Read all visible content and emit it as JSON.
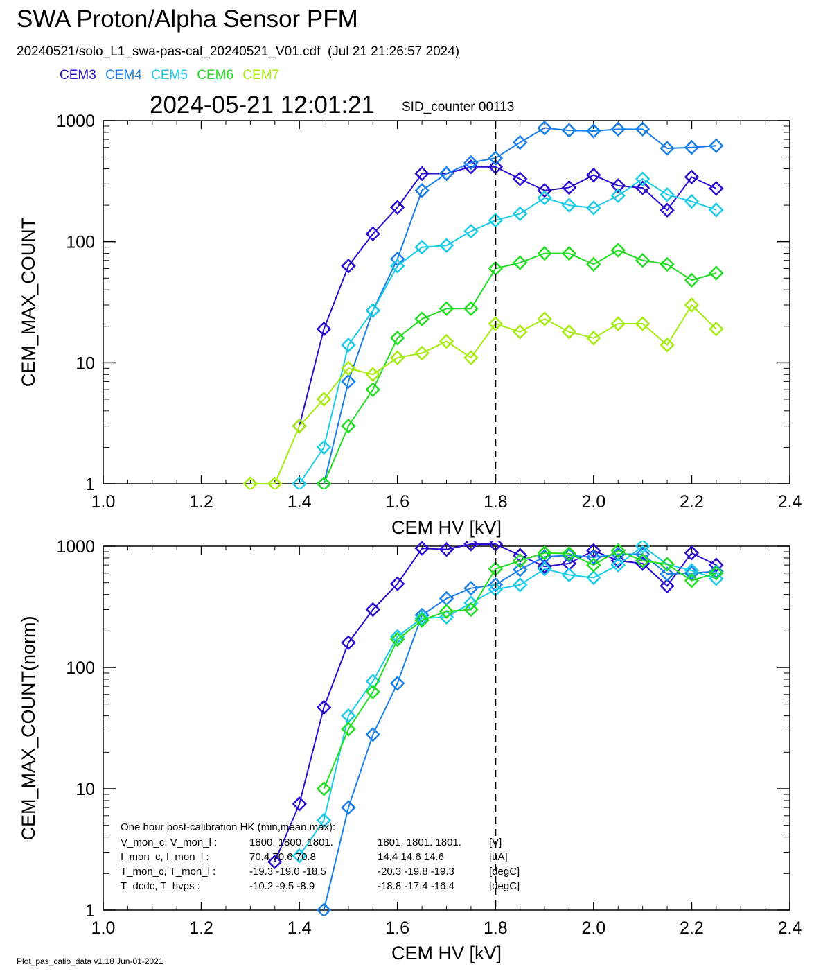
{
  "header": {
    "title": "SWA Proton/Alpha Sensor PFM",
    "subtitle": "20240521/solo_L1_swa-pas-cal_20240521_V01.cdf  (Jul 21 21:26:57 2024)",
    "datetime": "2024-05-21 12:01:21",
    "sid_counter": "SID_counter 00113"
  },
  "legend": [
    {
      "name": "CEM3",
      "color": "#2a0fd0"
    },
    {
      "name": "CEM4",
      "color": "#1a7fe6"
    },
    {
      "name": "CEM5",
      "color": "#1ccbe8"
    },
    {
      "name": "CEM6",
      "color": "#22dd22"
    },
    {
      "name": "CEM7",
      "color": "#a6ec10"
    }
  ],
  "footer": "Plot_pas_calib_data v1.18 Jun-01-2021",
  "chart_data": [
    {
      "type": "line",
      "xlabel": "CEM HV [kV]",
      "ylabel": "CEM_MAX_COUNT",
      "xlim": [
        1.0,
        2.4
      ],
      "ylim": [
        1,
        1000
      ],
      "yscale": "log",
      "xticks": [
        "1.0",
        "1.2",
        "1.4",
        "1.6",
        "1.8",
        "2.0",
        "2.2",
        "2.4"
      ],
      "yticks": [
        "1",
        "10",
        "100",
        "1000"
      ],
      "vline": 1.8,
      "x": [
        1.0,
        1.05,
        1.1,
        1.15,
        1.2,
        1.25,
        1.3,
        1.35,
        1.4,
        1.45,
        1.5,
        1.55,
        1.6,
        1.65,
        1.7,
        1.75,
        1.8,
        1.85,
        1.9,
        1.95,
        2.0,
        2.05,
        2.1,
        2.15,
        2.2,
        2.25
      ],
      "series": [
        {
          "name": "CEM3",
          "color": "#2a0fd0",
          "values": [
            null,
            null,
            null,
            null,
            null,
            null,
            null,
            null,
            3,
            19,
            63,
            116,
            192,
            365,
            365,
            415,
            415,
            330,
            265,
            280,
            355,
            290,
            278,
            182,
            342,
            275
          ]
        },
        {
          "name": "CEM4",
          "color": "#1a7fe6",
          "values": [
            null,
            null,
            null,
            null,
            null,
            null,
            null,
            null,
            null,
            1,
            7,
            27,
            72,
            265,
            365,
            450,
            490,
            660,
            870,
            830,
            820,
            850,
            850,
            590,
            600,
            620
          ]
        },
        {
          "name": "CEM5",
          "color": "#1ccbe8",
          "values": [
            null,
            null,
            null,
            null,
            null,
            null,
            null,
            null,
            1,
            2,
            14,
            27,
            63,
            90,
            93,
            122,
            150,
            170,
            230,
            200,
            190,
            240,
            330,
            245,
            215,
            183
          ]
        },
        {
          "name": "CEM6",
          "color": "#22dd22",
          "values": [
            null,
            null,
            null,
            null,
            null,
            null,
            null,
            null,
            null,
            1,
            3,
            6,
            16,
            23,
            28,
            28,
            60,
            67,
            80,
            80,
            65,
            85,
            70,
            65,
            48,
            55
          ]
        },
        {
          "name": "CEM7",
          "color": "#a6ec10",
          "values": [
            null,
            null,
            null,
            null,
            null,
            null,
            1,
            1,
            3,
            5,
            9,
            8,
            11,
            12,
            15,
            11,
            21,
            18,
            23,
            18,
            16,
            21,
            21,
            14,
            30,
            19
          ]
        }
      ]
    },
    {
      "type": "line",
      "xlabel": "CEM HV [kV]",
      "ylabel": "CEM_MAX_COUNT(norm)",
      "xlim": [
        1.0,
        2.4
      ],
      "ylim": [
        1,
        1000
      ],
      "yscale": "log",
      "xticks": [
        "1.0",
        "1.2",
        "1.4",
        "1.6",
        "1.8",
        "2.0",
        "2.2",
        "2.4"
      ],
      "yticks": [
        "1",
        "10",
        "100",
        "1000"
      ],
      "vline": 1.8,
      "x": [
        1.0,
        1.05,
        1.1,
        1.15,
        1.2,
        1.25,
        1.3,
        1.35,
        1.4,
        1.45,
        1.5,
        1.55,
        1.6,
        1.65,
        1.7,
        1.75,
        1.8,
        1.85,
        1.9,
        1.95,
        2.0,
        2.05,
        2.1,
        2.15,
        2.2,
        2.25
      ],
      "series": [
        {
          "name": "CEM3",
          "color": "#2a0fd0",
          "values": [
            null,
            null,
            null,
            null,
            null,
            null,
            null,
            2.5,
            7.5,
            47,
            160,
            300,
            490,
            960,
            940,
            1040,
            1040,
            840,
            680,
            720,
            920,
            760,
            720,
            470,
            880,
            700
          ]
        },
        {
          "name": "CEM4",
          "color": "#1a7fe6",
          "values": [
            null,
            null,
            null,
            null,
            null,
            null,
            null,
            null,
            null,
            1,
            7,
            28,
            74,
            270,
            370,
            450,
            480,
            640,
            820,
            840,
            810,
            860,
            860,
            590,
            600,
            620
          ]
        },
        {
          "name": "CEM5",
          "color": "#1ccbe8",
          "values": [
            null,
            null,
            null,
            null,
            null,
            null,
            null,
            null,
            2.8,
            5.5,
            40,
            77,
            180,
            255,
            260,
            340,
            440,
            480,
            650,
            580,
            550,
            700,
            1000,
            710,
            630,
            540
          ]
        },
        {
          "name": "CEM6",
          "color": "#22dd22",
          "values": [
            null,
            null,
            null,
            null,
            null,
            null,
            null,
            null,
            null,
            10,
            31,
            63,
            170,
            245,
            290,
            300,
            650,
            760,
            880,
            870,
            700,
            920,
            760,
            710,
            520,
            600
          ]
        },
        {
          "name": "CEM7",
          "color": "#a6ec10",
          "values": [
            null,
            null,
            null,
            null,
            null,
            null,
            null,
            null,
            null,
            null,
            null,
            null,
            null,
            null,
            null,
            null,
            null,
            null,
            null,
            null,
            null,
            null,
            null,
            null,
            null,
            null
          ]
        }
      ],
      "annotations": {
        "hk_title": "One hour post-calibration HK (min,mean,max):",
        "hk_rows": [
          {
            "label": "V_mon_c, V_mon_l :",
            "values_c": "1800.  1800.  1801.",
            "values_l": "1801.  1801.  1801.",
            "unit": "[V]"
          },
          {
            "label": "I_mon_c,  I_mon_l :",
            "values_c": "70.4   70.6   70.8",
            "values_l": "14.4   14.6   14.6",
            "unit": "[uA]"
          },
          {
            "label": "T_mon_c, T_mon_l :",
            "values_c": "-19.3  -19.0  -18.5",
            "values_l": "-20.3  -19.8  -19.3",
            "unit": "[degC]"
          },
          {
            "label": "T_dcdc,    T_hvps :",
            "values_c": "-10.2   -9.5   -8.9",
            "values_l": "-18.8  -17.4  -16.4",
            "unit": "[degC]"
          }
        ]
      }
    }
  ]
}
